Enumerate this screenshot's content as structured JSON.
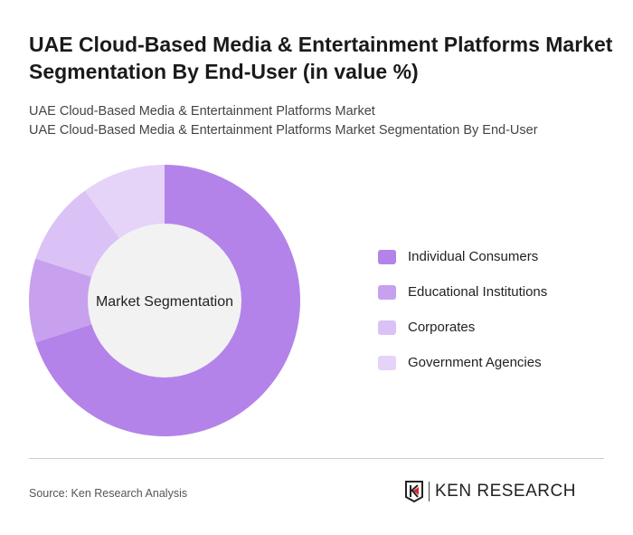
{
  "title": "UAE Cloud-Based Media & Entertainment Platforms Market Segmentation By End-User (in value %)",
  "subtitle_1": "UAE Cloud-Based Media & Entertainment Platforms Market",
  "subtitle_2": "UAE Cloud-Based Media & Entertainment Platforms Market Segmentation By End-User",
  "chart_data": {
    "type": "pie",
    "variant": "donut",
    "center_label": "Market Segmentation",
    "categories": [
      "Individual Consumers",
      "Educational Institutions",
      "Corporates",
      "Government Agencies"
    ],
    "values": [
      70,
      10,
      10,
      10
    ],
    "colors": [
      "#b383ea",
      "#c7a0ee",
      "#dbc2f6",
      "#e5d3f8"
    ],
    "legend_position": "right"
  },
  "footer": {
    "source": "Source: Ken Research Analysis",
    "logo_text": "KEN RESEARCH"
  }
}
